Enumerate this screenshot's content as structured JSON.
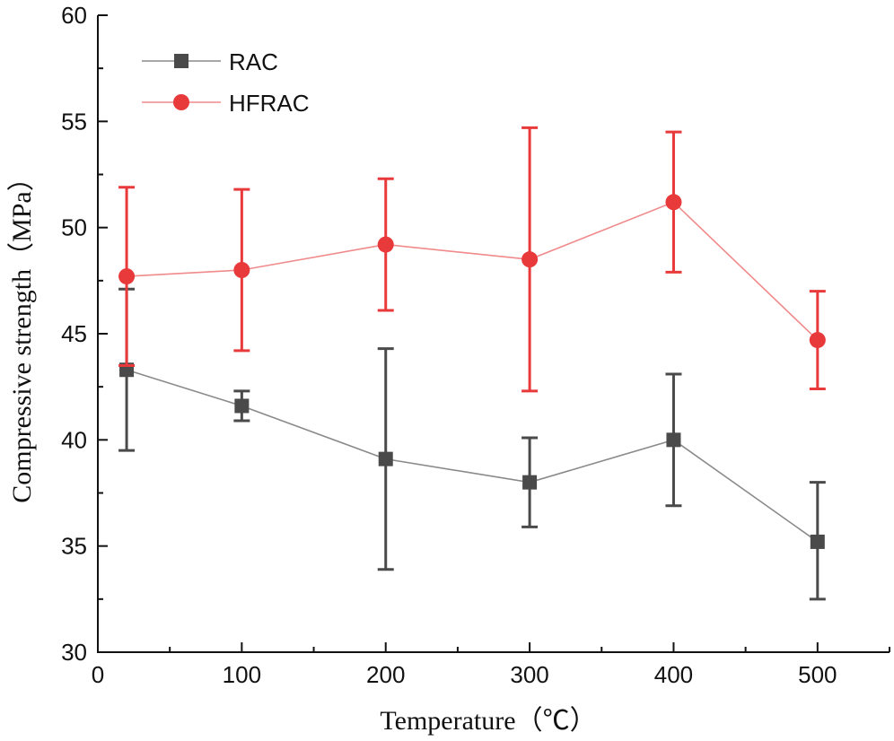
{
  "chart_data": {
    "type": "line",
    "title": "",
    "xlabel": "Temperature（℃）",
    "ylabel": "Compressive strength（MPa）",
    "xlim": [
      0,
      550
    ],
    "ylim": [
      30,
      60
    ],
    "xticks": [
      0,
      100,
      200,
      300,
      400,
      500
    ],
    "yticks": [
      30,
      35,
      40,
      45,
      50,
      55,
      60
    ],
    "xtick_labels": [
      "0",
      "100",
      "200",
      "300",
      "400",
      "500"
    ],
    "ytick_labels": [
      "30",
      "35",
      "40",
      "45",
      "50",
      "55",
      "60"
    ],
    "x": [
      20,
      100,
      200,
      300,
      400,
      500
    ],
    "series": [
      {
        "name": "RAC",
        "marker": "square",
        "color": "#4a4a4a",
        "line_color": "#8a8a8a",
        "values": [
          43.3,
          41.6,
          39.1,
          38.0,
          40.0,
          35.2
        ],
        "errors_low": [
          3.8,
          0.7,
          5.2,
          2.1,
          3.1,
          2.7
        ],
        "errors_high": [
          3.8,
          0.7,
          5.2,
          2.1,
          3.1,
          2.8
        ]
      },
      {
        "name": "HFRAC",
        "marker": "circle",
        "color": "#e8393b",
        "line_color": "#f08a8b",
        "values": [
          47.7,
          48.0,
          49.2,
          48.5,
          51.2,
          44.7
        ],
        "errors_low": [
          4.2,
          3.8,
          3.1,
          6.2,
          3.3,
          2.3
        ],
        "errors_high": [
          4.2,
          3.8,
          3.1,
          6.2,
          3.3,
          2.3
        ]
      }
    ],
    "legend_position": "top-left",
    "grid": false
  }
}
